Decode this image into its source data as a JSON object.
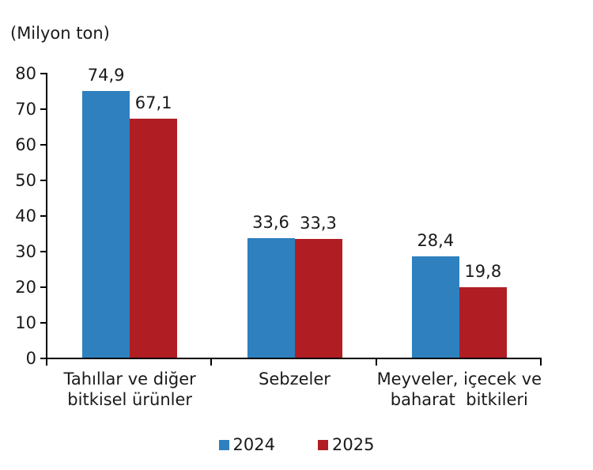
{
  "figure": {
    "background": "#ffffff",
    "text_color": "#1a1a1a",
    "axis_color": "#000000"
  },
  "chart_data": {
    "type": "bar",
    "title": "",
    "ylabel": "(Milyon ton)",
    "xlabel": "",
    "categories": [
      "Tahıllar ve diğer bitkisel ürünler",
      "Sebzeler",
      "Meyveler, içecek ve baharat bitkileri"
    ],
    "categories_lines": [
      [
        "Tahıllar ve diğer",
        "bitkisel ürünler"
      ],
      [
        "Sebzeler"
      ],
      [
        "Meyveler, içecek ve",
        "baharat  bitkileri"
      ]
    ],
    "series": [
      {
        "name": "2024",
        "color": "#2E80BE",
        "values": [
          74.9,
          33.6,
          28.4
        ],
        "value_labels": [
          "74,9",
          "33,6",
          "28,4"
        ]
      },
      {
        "name": "2025",
        "color": "#B01E24",
        "values": [
          67.1,
          33.3,
          19.8
        ],
        "value_labels": [
          "67,1",
          "33,3",
          "19,8"
        ]
      }
    ],
    "ylim": [
      0,
      80
    ],
    "ytick_step": 10,
    "ytick_labels": [
      "0",
      "10",
      "20",
      "30",
      "40",
      "50",
      "60",
      "70",
      "80"
    ],
    "grid": false,
    "legend_position": "bottom",
    "decimal_separator": ","
  }
}
